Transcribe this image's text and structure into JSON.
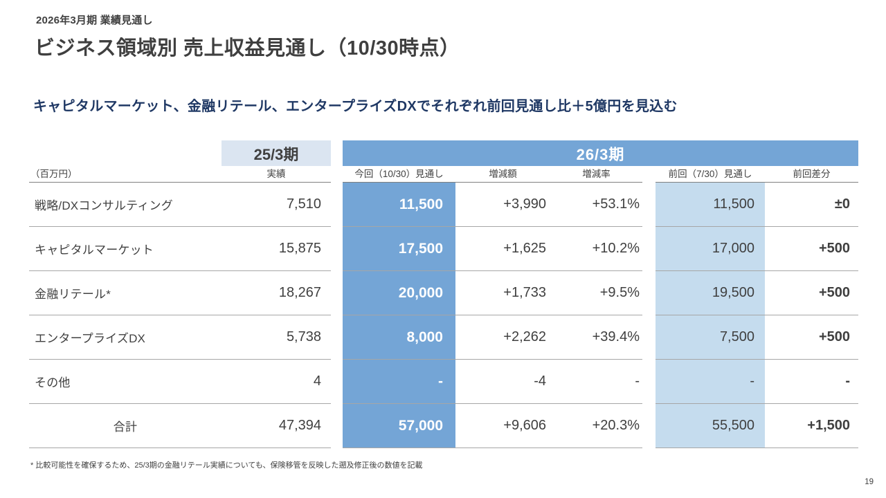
{
  "page": {
    "kicker": "2026年3月期 業績見通し",
    "title": "ビジネス領域別 売上収益見通し（10/30時点）",
    "subtitle": "キャピタルマーケット、金融リテール、エンタープライズDXでそれぞれ前回見通し比＋5億円を見込む",
    "footnote": "* 比較可能性を確保するため、25/3期の金融リテール実績についても、保険移管を反映した遡及修正後の数値を記載",
    "page_number": "19"
  },
  "table": {
    "unit_label": "（百万円）",
    "group_prev": "25/3期",
    "group_current": "26/3期",
    "subheaders": {
      "actual": "実績",
      "current_forecast": "今回（10/30）見通し",
      "change_amount": "増減額",
      "change_rate": "増減率",
      "previous_forecast": "前回（7/30）見通し",
      "previous_diff": "前回差分"
    },
    "rows": [
      {
        "label": "戦略/DXコンサルティング",
        "actual": "7,510",
        "current": "11,500",
        "change_amount": "+3,990",
        "change_rate": "+53.1%",
        "previous": "11,500",
        "diff": "±0"
      },
      {
        "label": "キャピタルマーケット",
        "actual": "15,875",
        "current": "17,500",
        "change_amount": "+1,625",
        "change_rate": "+10.2%",
        "previous": "17,000",
        "diff": "+500"
      },
      {
        "label": "金融リテール*",
        "actual": "18,267",
        "current": "20,000",
        "change_amount": "+1,733",
        "change_rate": "+9.5%",
        "previous": "19,500",
        "diff": "+500"
      },
      {
        "label": "エンタープライズDX",
        "actual": "5,738",
        "current": "8,000",
        "change_amount": "+2,262",
        "change_rate": "+39.4%",
        "previous": "7,500",
        "diff": "+500"
      },
      {
        "label": "その他",
        "actual": "4",
        "current": "-",
        "change_amount": "-4",
        "change_rate": "-",
        "previous": "-",
        "diff": "-"
      },
      {
        "label": "合計",
        "actual": "47,394",
        "current": "57,000",
        "change_amount": "+9,606",
        "change_rate": "+20.3%",
        "previous": "55,500",
        "diff": "+1,500"
      }
    ]
  },
  "colors": {
    "text_dark": "#404040",
    "navy": "#1f3864",
    "band_blue": "#74a5d6",
    "cell_light_blue": "#c5dcee",
    "prev_box_blue": "#dbe5f1",
    "line_gray": "#a6a6a6",
    "line_dark": "#7f7f7f"
  }
}
